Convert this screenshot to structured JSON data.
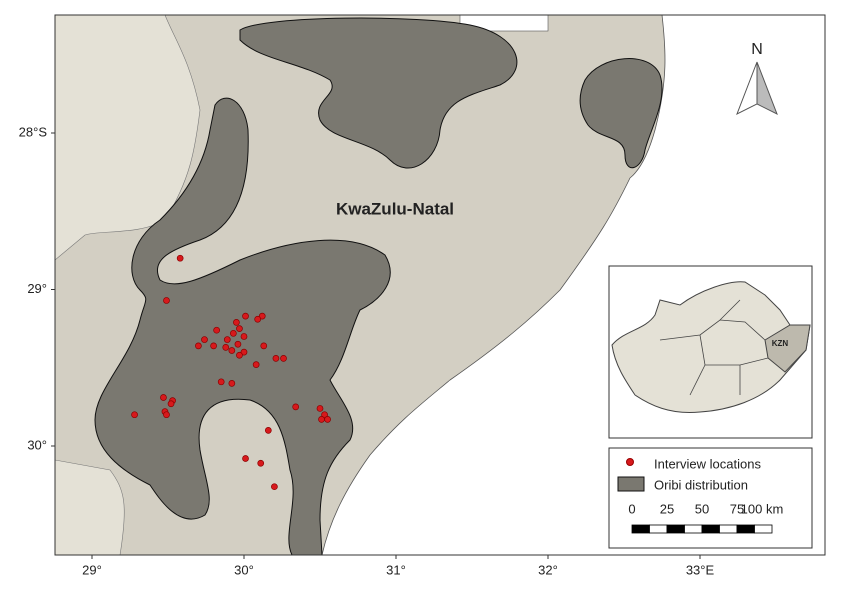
{
  "map": {
    "region_label": "KwaZulu-Natal",
    "north_label": "N",
    "lon_ticks": [
      {
        "value": 29,
        "label": "29°"
      },
      {
        "value": 30,
        "label": "30°"
      },
      {
        "value": 31,
        "label": "31°"
      },
      {
        "value": 32,
        "label": "32°"
      },
      {
        "value": 33,
        "label": "33°E"
      }
    ],
    "lat_ticks": [
      {
        "value": 28,
        "label": "28°S"
      },
      {
        "value": 29,
        "label": "29°"
      },
      {
        "value": 30,
        "label": "30°"
      }
    ],
    "points": [
      {
        "lon": 29.58,
        "lat": 28.8
      },
      {
        "lon": 29.49,
        "lat": 29.07
      },
      {
        "lon": 30.12,
        "lat": 29.17
      },
      {
        "lon": 30.09,
        "lat": 29.19
      },
      {
        "lon": 30.01,
        "lat": 29.17
      },
      {
        "lon": 29.95,
        "lat": 29.21
      },
      {
        "lon": 29.82,
        "lat": 29.26
      },
      {
        "lon": 29.97,
        "lat": 29.25
      },
      {
        "lon": 29.93,
        "lat": 29.28
      },
      {
        "lon": 30.0,
        "lat": 29.3
      },
      {
        "lon": 29.74,
        "lat": 29.32
      },
      {
        "lon": 29.7,
        "lat": 29.36
      },
      {
        "lon": 29.8,
        "lat": 29.36
      },
      {
        "lon": 29.89,
        "lat": 29.32
      },
      {
        "lon": 29.88,
        "lat": 29.37
      },
      {
        "lon": 29.96,
        "lat": 29.35
      },
      {
        "lon": 29.92,
        "lat": 29.39
      },
      {
        "lon": 30.0,
        "lat": 29.4
      },
      {
        "lon": 29.97,
        "lat": 29.42
      },
      {
        "lon": 30.13,
        "lat": 29.36
      },
      {
        "lon": 30.21,
        "lat": 29.44
      },
      {
        "lon": 30.26,
        "lat": 29.44
      },
      {
        "lon": 30.08,
        "lat": 29.48
      },
      {
        "lon": 29.85,
        "lat": 29.59
      },
      {
        "lon": 29.92,
        "lat": 29.6
      },
      {
        "lon": 29.47,
        "lat": 29.69
      },
      {
        "lon": 29.53,
        "lat": 29.71
      },
      {
        "lon": 29.52,
        "lat": 29.73
      },
      {
        "lon": 29.48,
        "lat": 29.78
      },
      {
        "lon": 29.49,
        "lat": 29.8
      },
      {
        "lon": 29.28,
        "lat": 29.8
      },
      {
        "lon": 30.34,
        "lat": 29.75
      },
      {
        "lon": 30.5,
        "lat": 29.76
      },
      {
        "lon": 30.53,
        "lat": 29.8
      },
      {
        "lon": 30.55,
        "lat": 29.83
      },
      {
        "lon": 30.51,
        "lat": 29.83
      },
      {
        "lon": 30.16,
        "lat": 29.9
      },
      {
        "lon": 30.01,
        "lat": 30.08
      },
      {
        "lon": 30.11,
        "lat": 30.11
      },
      {
        "lon": 30.2,
        "lat": 30.26
      }
    ]
  },
  "inset": {
    "label": "KZN"
  },
  "legend": {
    "items": [
      "Interview locations",
      "Oribi distribution"
    ]
  },
  "scale_bar": {
    "labels": [
      "0",
      "25",
      "50",
      "75",
      "100 km"
    ]
  }
}
